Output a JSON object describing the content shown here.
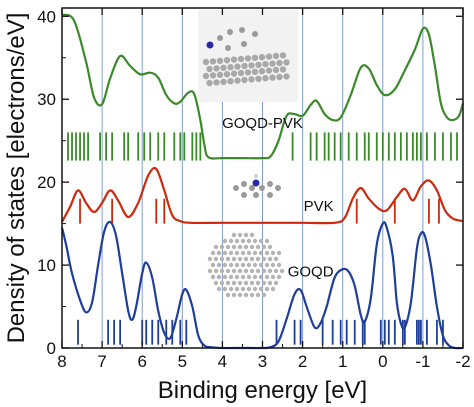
{
  "chart_data": {
    "type": "line",
    "title": "",
    "xlabel": "Binding energy [eV]",
    "ylabel": "Density of states [electrons/eV]",
    "xlim": [
      8,
      -2
    ],
    "ylim": [
      0,
      41
    ],
    "x_ticks": [
      "8",
      "7",
      "6",
      "5",
      "4",
      "3",
      "2",
      "1",
      "0",
      "-1",
      "-2"
    ],
    "y_ticks": [
      "0",
      "10",
      "20",
      "30",
      "40"
    ],
    "vertical_grid_lines": [
      7,
      6,
      5,
      4,
      3,
      2,
      1,
      0,
      -1
    ],
    "grid_color": "#7d9ed4",
    "series": [
      {
        "name": "GOQD-PVK",
        "color": "#3a8a2a",
        "points": [
          [
            8.0,
            40.2
          ],
          [
            7.7,
            39.5
          ],
          [
            7.4,
            34.5
          ],
          [
            7.2,
            30.2
          ],
          [
            7.0,
            29.4
          ],
          [
            6.8,
            32.5
          ],
          [
            6.55,
            35.2
          ],
          [
            6.3,
            34.0
          ],
          [
            6.05,
            33.0
          ],
          [
            5.8,
            33.2
          ],
          [
            5.6,
            32.6
          ],
          [
            5.4,
            30.5
          ],
          [
            5.2,
            29.5
          ],
          [
            5.05,
            29.7
          ],
          [
            4.85,
            30.8
          ],
          [
            4.7,
            30.6
          ],
          [
            4.55,
            27.5
          ],
          [
            4.45,
            24.5
          ],
          [
            4.35,
            23.0
          ],
          [
            4.0,
            22.9
          ],
          [
            3.5,
            22.9
          ],
          [
            3.0,
            22.9
          ],
          [
            2.8,
            23.1
          ],
          [
            2.6,
            25.0
          ],
          [
            2.4,
            28.0
          ],
          [
            2.2,
            28.2
          ],
          [
            2.0,
            28.0
          ],
          [
            1.8,
            29.3
          ],
          [
            1.65,
            29.8
          ],
          [
            1.45,
            28.2
          ],
          [
            1.25,
            27.5
          ],
          [
            1.05,
            27.8
          ],
          [
            0.8,
            30.5
          ],
          [
            0.55,
            33.8
          ],
          [
            0.35,
            33.7
          ],
          [
            0.15,
            31.7
          ],
          [
            -0.05,
            30.5
          ],
          [
            -0.3,
            31.2
          ],
          [
            -0.55,
            33.5
          ],
          [
            -0.8,
            36.0
          ],
          [
            -1.0,
            38.5
          ],
          [
            -1.15,
            37.8
          ],
          [
            -1.3,
            34.0
          ],
          [
            -1.45,
            29.5
          ],
          [
            -1.6,
            27.8
          ],
          [
            -1.75,
            27.5
          ],
          [
            -1.9,
            28.0
          ],
          [
            -2.0,
            29.5
          ]
        ],
        "sticks": [
          7.85,
          7.75,
          7.65,
          7.55,
          7.45,
          7.35,
          7.05,
          6.9,
          6.75,
          6.45,
          6.35,
          6.1,
          5.95,
          5.8,
          5.6,
          5.45,
          5.2,
          5.05,
          4.95,
          4.75,
          4.65,
          4.55,
          2.25,
          1.8,
          1.65,
          1.45,
          1.35,
          1.2,
          1.05,
          0.85,
          0.65,
          0.45,
          0.35,
          0.15,
          0.0,
          -0.15,
          -0.3,
          -0.45,
          -0.6,
          -0.75,
          -0.85,
          -0.95,
          -1.1,
          -1.3,
          -1.5,
          -1.7,
          -1.85
        ],
        "stick_range": [
          22.6,
          26.0
        ]
      },
      {
        "name": "PVK",
        "color": "#cc2a0e",
        "points": [
          [
            8.0,
            15.2
          ],
          [
            7.8,
            17.0
          ],
          [
            7.6,
            19.0
          ],
          [
            7.4,
            17.5
          ],
          [
            7.2,
            16.4
          ],
          [
            7.0,
            17.5
          ],
          [
            6.8,
            19.0
          ],
          [
            6.6,
            17.8
          ],
          [
            6.35,
            15.8
          ],
          [
            6.1,
            17.5
          ],
          [
            5.85,
            20.8
          ],
          [
            5.65,
            21.6
          ],
          [
            5.45,
            19.0
          ],
          [
            5.25,
            16.0
          ],
          [
            5.05,
            15.3
          ],
          [
            4.8,
            15.1
          ],
          [
            4.0,
            15.1
          ],
          [
            3.0,
            15.1
          ],
          [
            2.0,
            15.1
          ],
          [
            1.2,
            15.1
          ],
          [
            0.95,
            15.7
          ],
          [
            0.75,
            18.0
          ],
          [
            0.55,
            19.3
          ],
          [
            0.35,
            18.0
          ],
          [
            0.1,
            16.8
          ],
          [
            -0.1,
            16.6
          ],
          [
            -0.35,
            18.2
          ],
          [
            -0.55,
            19.2
          ],
          [
            -0.75,
            17.8
          ],
          [
            -0.95,
            19.5
          ],
          [
            -1.15,
            20.2
          ],
          [
            -1.35,
            19.0
          ],
          [
            -1.55,
            16.6
          ],
          [
            -1.75,
            15.6
          ],
          [
            -2.0,
            15.3
          ]
        ],
        "sticks": [
          7.55,
          6.75,
          5.65,
          5.45,
          0.65,
          -0.3,
          -1.15,
          -1.4
        ],
        "stick_range": [
          15.0,
          18.0
        ]
      },
      {
        "name": "GOQD",
        "color": "#1e3e9a",
        "points": [
          [
            8.0,
            14.5
          ],
          [
            7.9,
            12.5
          ],
          [
            7.75,
            9.0
          ],
          [
            7.55,
            5.8
          ],
          [
            7.4,
            4.3
          ],
          [
            7.25,
            5.5
          ],
          [
            7.1,
            10.0
          ],
          [
            6.95,
            14.0
          ],
          [
            6.8,
            15.2
          ],
          [
            6.65,
            13.5
          ],
          [
            6.5,
            9.0
          ],
          [
            6.35,
            4.5
          ],
          [
            6.25,
            3.4
          ],
          [
            6.15,
            5.0
          ],
          [
            6.0,
            9.0
          ],
          [
            5.9,
            10.3
          ],
          [
            5.75,
            8.5
          ],
          [
            5.6,
            4.5
          ],
          [
            5.45,
            1.8
          ],
          [
            5.3,
            1.2
          ],
          [
            5.15,
            3.5
          ],
          [
            5.0,
            6.5
          ],
          [
            4.9,
            7.0
          ],
          [
            4.75,
            5.0
          ],
          [
            4.6,
            1.5
          ],
          [
            4.45,
            0.3
          ],
          [
            4.3,
            0.1
          ],
          [
            4.0,
            0.0
          ],
          [
            3.5,
            0.0
          ],
          [
            3.0,
            0.0
          ],
          [
            2.8,
            0.1
          ],
          [
            2.6,
            0.8
          ],
          [
            2.4,
            3.5
          ],
          [
            2.2,
            6.5
          ],
          [
            2.05,
            7.0
          ],
          [
            1.9,
            5.0
          ],
          [
            1.7,
            2.5
          ],
          [
            1.55,
            3.0
          ],
          [
            1.4,
            5.0
          ],
          [
            1.2,
            8.5
          ],
          [
            1.0,
            9.5
          ],
          [
            0.85,
            9.2
          ],
          [
            0.7,
            7.5
          ],
          [
            0.55,
            4.0
          ],
          [
            0.45,
            3.2
          ],
          [
            0.3,
            6.0
          ],
          [
            0.15,
            12.5
          ],
          [
            0.0,
            15.0
          ],
          [
            -0.1,
            14.5
          ],
          [
            -0.25,
            11.0
          ],
          [
            -0.35,
            5.5
          ],
          [
            -0.45,
            3.0
          ],
          [
            -0.55,
            2.5
          ],
          [
            -0.7,
            5.5
          ],
          [
            -0.85,
            12.0
          ],
          [
            -0.95,
            13.8
          ],
          [
            -1.05,
            13.5
          ],
          [
            -1.2,
            10.0
          ],
          [
            -1.35,
            5.0
          ],
          [
            -1.5,
            1.5
          ],
          [
            -1.65,
            0.3
          ],
          [
            -1.8,
            0.0
          ],
          [
            -2.0,
            0.0
          ]
        ],
        "sticks": [
          7.6,
          6.85,
          6.7,
          6.55,
          6.0,
          5.9,
          5.75,
          5.6,
          5.4,
          5.25,
          5.05,
          4.9,
          2.65,
          2.2,
          2.05,
          1.5,
          1.25,
          1.05,
          0.9,
          0.7,
          0.5,
          0.45,
          0.05,
          -0.05,
          -0.15,
          -0.3,
          -0.5,
          -0.55,
          -0.85,
          -0.9,
          -0.95,
          -1.1,
          -1.35,
          -1.5
        ],
        "stick_range": [
          0.4,
          3.4
        ]
      }
    ]
  }
}
